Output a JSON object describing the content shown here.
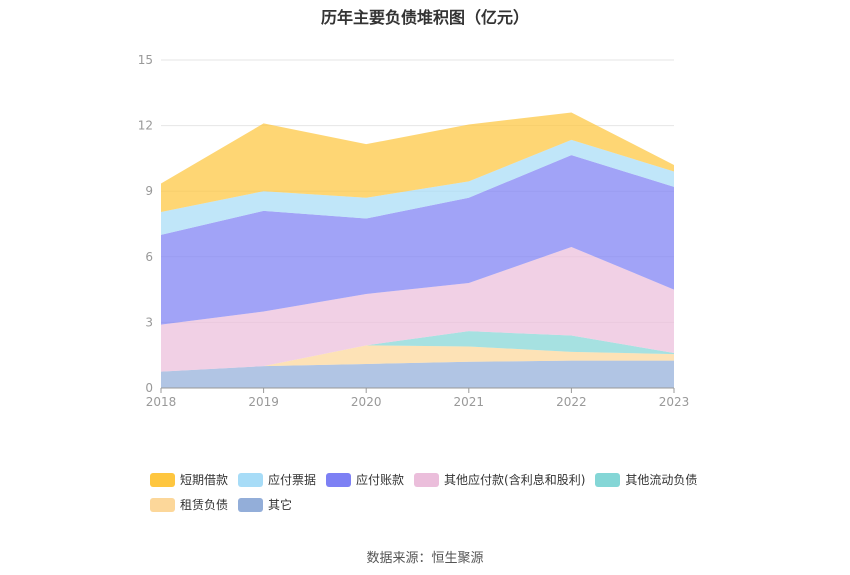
{
  "chart_data": {
    "type": "area",
    "title": "历年主要负债堆积图（亿元）",
    "categories": [
      "2018",
      "2019",
      "2020",
      "2021",
      "2022",
      "2023"
    ],
    "ylim": [
      0,
      15
    ],
    "yticks": [
      0,
      3,
      6,
      9,
      12,
      15
    ],
    "grid": true,
    "legend_position": "bottom",
    "series": [
      {
        "name": "其它",
        "color": "#93aed9",
        "values": [
          0.75,
          1.0,
          1.1,
          1.2,
          1.25,
          1.25
        ]
      },
      {
        "name": "租赁负债",
        "color": "#fcd79a",
        "values": [
          0.0,
          0.0,
          0.85,
          0.7,
          0.4,
          0.3
        ]
      },
      {
        "name": "其他流动负债",
        "color": "#84d6d6",
        "values": [
          0.0,
          0.0,
          0.0,
          0.7,
          0.75,
          0.05
        ]
      },
      {
        "name": "其他应付款(含利息和股利)",
        "color": "#ebbedb",
        "values": [
          2.15,
          2.5,
          2.35,
          2.2,
          4.05,
          2.9
        ]
      },
      {
        "name": "应付账款",
        "color": "#7d80f4",
        "values": [
          4.1,
          4.6,
          3.45,
          3.9,
          4.2,
          4.7
        ]
      },
      {
        "name": "应付票据",
        "color": "#a7dcf7",
        "values": [
          1.05,
          0.9,
          0.95,
          0.75,
          0.7,
          0.7
        ]
      },
      {
        "name": "短期借款",
        "color": "#fec63f",
        "values": [
          1.3,
          3.1,
          2.45,
          2.6,
          1.25,
          0.3
        ]
      }
    ]
  },
  "legend_order": [
    "短期借款",
    "应付票据",
    "应付账款",
    "其他应付款(含利息和股利)",
    "其他流动负债",
    "租赁负债",
    "其它"
  ],
  "source_text": "数据来源：恒生聚源"
}
